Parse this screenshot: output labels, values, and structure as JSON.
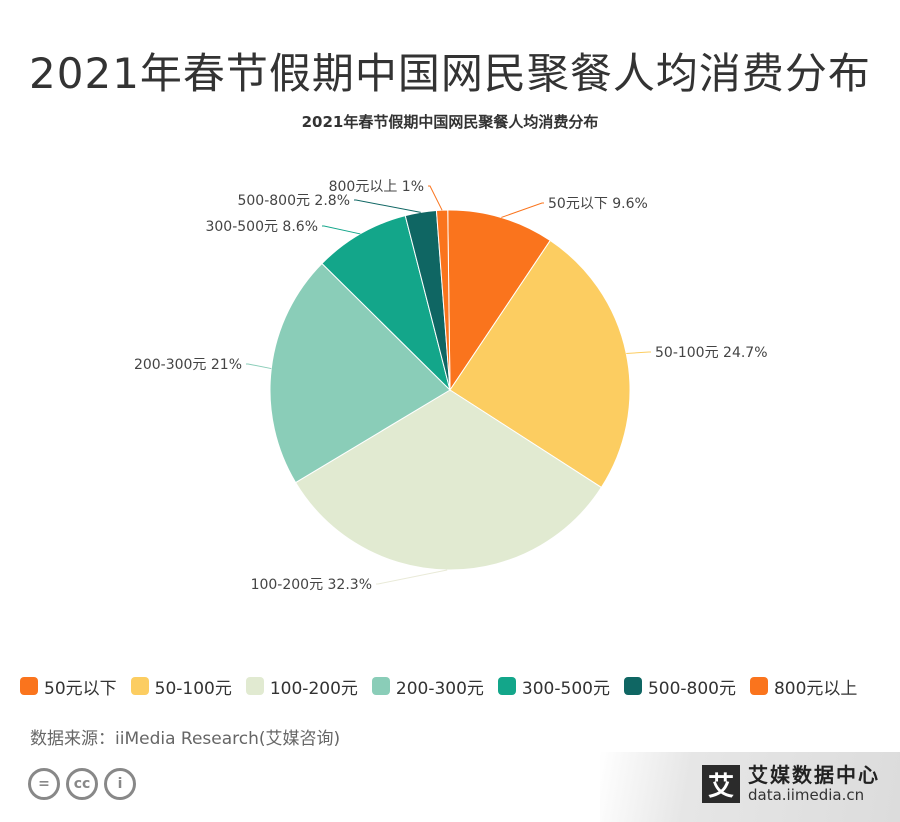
{
  "page": {
    "title": "2021年春节假期中国网民聚餐人均消费分布",
    "source": "数据来源：iiMedia Research(艾媒咨询)",
    "cc_icons": [
      "=",
      "cc",
      "i"
    ],
    "brand": {
      "logo": "艾",
      "name": "艾媒数据中心",
      "url": "data.iimedia.cn"
    }
  },
  "chart_data": {
    "type": "pie",
    "title": "2021年春节假期中国网民聚餐人均消费分布",
    "slices": [
      {
        "label": "50元以下",
        "value": 9.6,
        "display": "50元以下 9.6%",
        "color": "#fa741d"
      },
      {
        "label": "50-100元",
        "value": 24.7,
        "display": "50-100元 24.7%",
        "color": "#fccd61"
      },
      {
        "label": "100-200元",
        "value": 32.3,
        "display": "100-200元 32.3%",
        "color": "#e1ead1"
      },
      {
        "label": "200-300元",
        "value": 21,
        "display": "200-300元 21%",
        "color": "#8acdb8"
      },
      {
        "label": "300-500元",
        "value": 8.6,
        "display": "300-500元 8.6%",
        "color": "#13a68a"
      },
      {
        "label": "500-800元",
        "value": 2.8,
        "display": "500-800元 2.8%",
        "color": "#0f6663"
      },
      {
        "label": "800元以上",
        "value": 1,
        "display": "800元以上 1%",
        "color": "#fa741d"
      }
    ],
    "legend_position": "bottom"
  }
}
